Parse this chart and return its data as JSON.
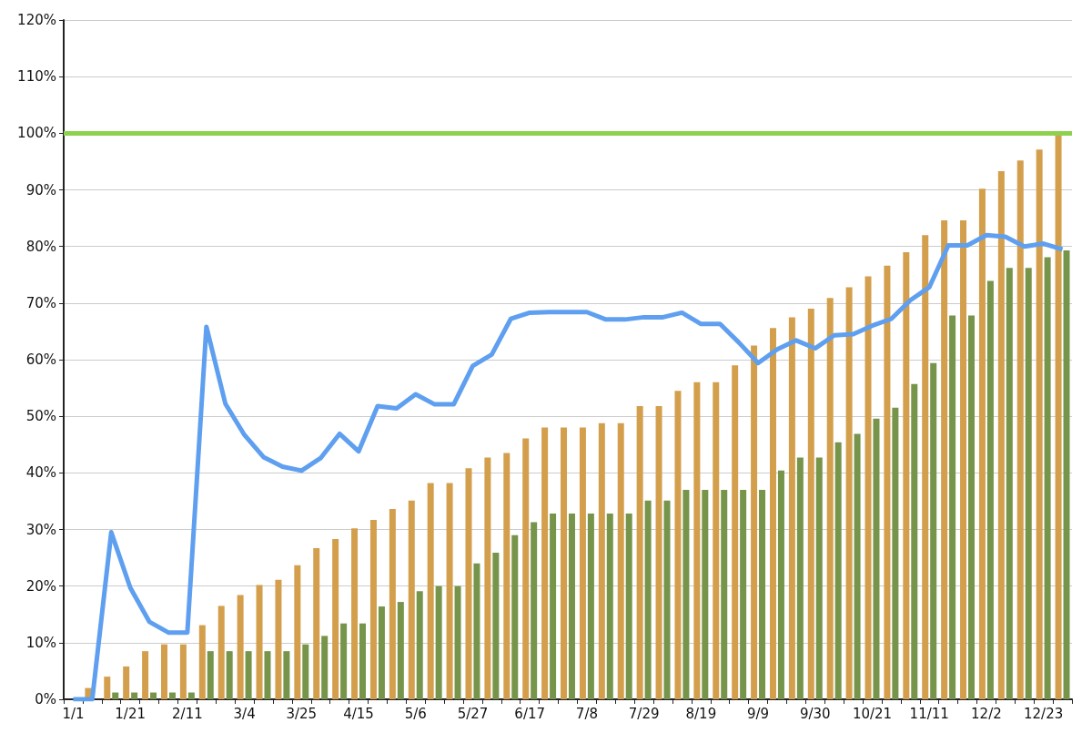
{
  "chart_data": {
    "type": "bar",
    "categories": [
      "1/1",
      null,
      null,
      "1/21",
      null,
      null,
      "2/11",
      null,
      null,
      "3/4",
      null,
      null,
      "3/25",
      null,
      null,
      "4/15",
      null,
      null,
      "5/6",
      null,
      null,
      "5/27",
      null,
      null,
      "6/17",
      null,
      null,
      "7/8",
      null,
      null,
      "7/29",
      null,
      null,
      "8/19",
      null,
      null,
      "9/9",
      null,
      null,
      "9/30",
      null,
      null,
      "10/21",
      null,
      null,
      "11/11",
      null,
      null,
      "12/2",
      null,
      null,
      "12/23",
      null
    ],
    "series": [
      {
        "color": "#d39f4c",
        "values": [
          0,
          2,
          4,
          5.8,
          8.5,
          9.7,
          9.7,
          13.1,
          16.5,
          18.4,
          20.2,
          21.1,
          23.7,
          26.7,
          28.3,
          30.2,
          31.7,
          33.6,
          35.1,
          38.2,
          38.2,
          40.8,
          42.7,
          43.5,
          46.1,
          48,
          48,
          48,
          48.8,
          48.8,
          51.8,
          51.8,
          54.5,
          56,
          56,
          59,
          62.5,
          65.6,
          67.5,
          69,
          70.9,
          72.8,
          74.7,
          76.6,
          79,
          82,
          84.6,
          84.6,
          90.2,
          93.3,
          95.2,
          97.1,
          100
        ]
      },
      {
        "color": "#76944a",
        "values": [
          0,
          0,
          1.2,
          1.2,
          1.2,
          1.2,
          1.2,
          8.5,
          8.5,
          8.5,
          8.5,
          8.5,
          9.7,
          11.2,
          13.4,
          13.4,
          16.4,
          17.2,
          19.1,
          20,
          20,
          24,
          25.9,
          29,
          31.3,
          32.8,
          32.8,
          32.8,
          32.8,
          32.8,
          35.1,
          35.1,
          37,
          37,
          37,
          37,
          37,
          40.4,
          42.7,
          42.7,
          45.4,
          46.9,
          49.6,
          51.5,
          55.7,
          59.4,
          67.8,
          67.8,
          73.9,
          76.2,
          76.2,
          78.1,
          79.3
        ]
      },
      {
        "type": "line",
        "color": "#5f9ff0",
        "values": [
          0,
          0,
          29.5,
          19.7,
          13.7,
          11.8,
          11.8,
          65.8,
          52.2,
          46.7,
          42.8,
          41.1,
          40.4,
          42.6,
          46.9,
          43.8,
          51.8,
          51.4,
          53.9,
          52.1,
          52.1,
          58.9,
          60.9,
          67.2,
          68.3,
          68.4,
          68.4,
          68.4,
          67.1,
          67.1,
          67.5,
          67.5,
          68.3,
          66.3,
          66.3,
          63,
          59.4,
          61.8,
          63.4,
          62,
          64.3,
          64.5,
          66,
          67.2,
          70.5,
          72.8,
          80.2,
          80.2,
          82,
          81.7,
          80,
          80.5,
          79.5
        ]
      }
    ],
    "ylim": [
      0,
      120
    ],
    "yticks": [
      {
        "value": 0,
        "label": "0%"
      },
      {
        "value": 10,
        "label": "10%"
      },
      {
        "value": 20,
        "label": "20%"
      },
      {
        "value": 30,
        "label": "30%"
      },
      {
        "value": 40,
        "label": "40%"
      },
      {
        "value": 50,
        "label": "50%"
      },
      {
        "value": 60,
        "label": "60%"
      },
      {
        "value": 70,
        "label": "70%"
      },
      {
        "value": 80,
        "label": "80%"
      },
      {
        "value": 90,
        "label": "90%"
      },
      {
        "value": 100,
        "label": "100%"
      },
      {
        "value": 110,
        "label": "110%"
      },
      {
        "value": 120,
        "label": "120%"
      }
    ],
    "ref_lines": [
      {
        "axis": "y",
        "value": 100,
        "color": "#8ed14f"
      }
    ],
    "grid": "y",
    "marker": "none"
  }
}
